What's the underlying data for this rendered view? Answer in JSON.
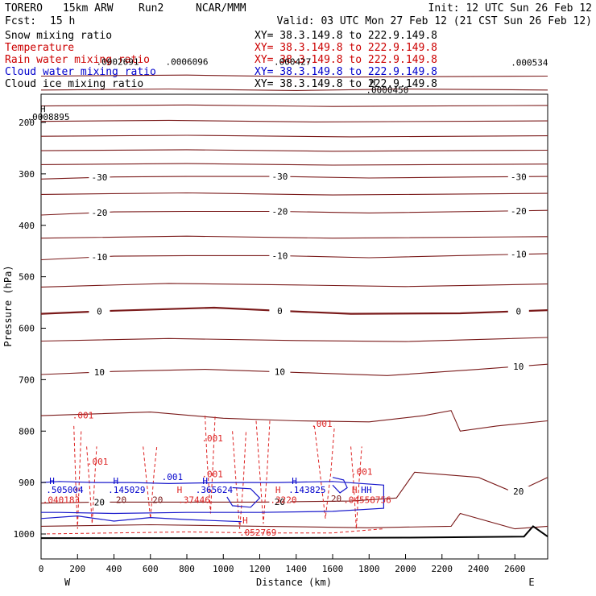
{
  "header": {
    "model": "TORERO",
    "resolution": "15km ARW",
    "run": "Run2",
    "center": "NCAR/MMM",
    "init": "Init: 12 UTC Sun 26 Feb 12",
    "fcst_label": "Fcst:",
    "fcst_value": "15 h",
    "valid": "Valid: 03 UTC Mon 27 Feb 12 (21 CST Sun 26 Feb 12)"
  },
  "fields": [
    {
      "label": "Snow mixing ratio",
      "xy": "XY=  38.3.149.8 to 222.9.149.8",
      "color": "#000000"
    },
    {
      "label": "Temperature",
      "xy": "XY=  38.3.149.8 to 222.9.149.8",
      "color": "#cc0000"
    },
    {
      "label": "Rain water mixing ratio",
      "xy": "XY=  38.3.149.8 to 222.9.149.8",
      "color": "#cc0000"
    },
    {
      "label": "Cloud water mixing ratio",
      "xy": "XY=  38.3.149.8 to 222.9.149.8",
      "color": "#0000cc"
    },
    {
      "label": "Cloud ice mixing ratio",
      "xy": "XY=  38.3.149.8 to 222.9.149.8",
      "color": "#000000"
    }
  ],
  "chart_data": {
    "type": "contour_cross_section",
    "xlabel": "Distance (km)",
    "ylabel": "Pressure (hPa)",
    "xlim": [
      0,
      2780
    ],
    "ylim": [
      1050,
      100
    ],
    "x_ticks": [
      0,
      200,
      400,
      600,
      800,
      1000,
      1200,
      1400,
      1600,
      1800,
      2000,
      2200,
      2400,
      2600
    ],
    "y_ticks": [
      200,
      300,
      400,
      500,
      600,
      700,
      800,
      900,
      1000
    ],
    "left_end": "W",
    "right_end": "E",
    "colors": {
      "temperature": "#7a1a1a",
      "rain": "#dd2222",
      "cloud_water": "#1a1acc",
      "terrain": "#000000"
    },
    "temperature_contours": [
      {
        "value": -65,
        "label": "",
        "points": [
          [
            0,
            110
          ],
          [
            800,
            108
          ],
          [
            1600,
            112
          ],
          [
            2780,
            110
          ]
        ]
      },
      {
        "value": -60,
        "label": "",
        "points": [
          [
            0,
            137
          ],
          [
            700,
            135
          ],
          [
            1400,
            138
          ],
          [
            2000,
            135
          ],
          [
            2780,
            137
          ]
        ]
      },
      {
        "value": -55,
        "label": "",
        "points": [
          [
            0,
            168
          ],
          [
            800,
            166
          ],
          [
            1600,
            169
          ],
          [
            2780,
            167
          ]
        ]
      },
      {
        "value": -50,
        "label": "",
        "points": [
          [
            0,
            198
          ],
          [
            700,
            196
          ],
          [
            1500,
            199
          ],
          [
            2780,
            197
          ]
        ]
      },
      {
        "value": -45,
        "label": "",
        "points": [
          [
            0,
            227
          ],
          [
            800,
            225
          ],
          [
            1700,
            228
          ],
          [
            2780,
            226
          ]
        ]
      },
      {
        "value": -40,
        "label": "",
        "points": [
          [
            0,
            255
          ],
          [
            800,
            253
          ],
          [
            1600,
            256
          ],
          [
            2780,
            254
          ]
        ]
      },
      {
        "value": -35,
        "label": "",
        "points": [
          [
            0,
            282
          ],
          [
            800,
            280
          ],
          [
            1600,
            283
          ],
          [
            2780,
            281
          ]
        ]
      },
      {
        "value": -30,
        "label": "-30",
        "points": [
          [
            0,
            310
          ],
          [
            400,
            306
          ],
          [
            800,
            305
          ],
          [
            1300,
            305
          ],
          [
            1800,
            308
          ],
          [
            2400,
            306
          ],
          [
            2780,
            305
          ]
        ]
      },
      {
        "value": -25,
        "label": "",
        "points": [
          [
            0,
            340
          ],
          [
            800,
            337
          ],
          [
            1600,
            341
          ],
          [
            2780,
            338
          ]
        ]
      },
      {
        "value": -20,
        "label": "-20",
        "points": [
          [
            0,
            380
          ],
          [
            400,
            374
          ],
          [
            800,
            373
          ],
          [
            1300,
            373
          ],
          [
            1800,
            376
          ],
          [
            2400,
            373
          ],
          [
            2780,
            371
          ]
        ]
      },
      {
        "value": -15,
        "label": "",
        "points": [
          [
            0,
            425
          ],
          [
            800,
            421
          ],
          [
            1600,
            425
          ],
          [
            2780,
            422
          ]
        ]
      },
      {
        "value": -10,
        "label": "-10",
        "points": [
          [
            0,
            467
          ],
          [
            400,
            460
          ],
          [
            800,
            459
          ],
          [
            1300,
            459
          ],
          [
            1800,
            463
          ],
          [
            2400,
            458
          ],
          [
            2780,
            455
          ]
        ]
      },
      {
        "value": -5,
        "label": "",
        "points": [
          [
            0,
            520
          ],
          [
            700,
            513
          ],
          [
            1400,
            516
          ],
          [
            2000,
            519
          ],
          [
            2780,
            514
          ]
        ]
      },
      {
        "value": 0,
        "label": "0",
        "points": [
          [
            0,
            572
          ],
          [
            400,
            566
          ],
          [
            950,
            560
          ],
          [
            1300,
            566
          ],
          [
            1700,
            572
          ],
          [
            2300,
            571
          ],
          [
            2780,
            565
          ]
        ]
      },
      {
        "value": 5,
        "label": "",
        "points": [
          [
            0,
            625
          ],
          [
            700,
            620
          ],
          [
            1400,
            624
          ],
          [
            2000,
            626
          ],
          [
            2780,
            618
          ]
        ]
      },
      {
        "value": 10,
        "label": "10",
        "points": [
          [
            0,
            690
          ],
          [
            400,
            684
          ],
          [
            900,
            680
          ],
          [
            1400,
            686
          ],
          [
            1900,
            692
          ],
          [
            2400,
            680
          ],
          [
            2780,
            670
          ]
        ]
      },
      {
        "value": 15,
        "label": "",
        "points": [
          [
            0,
            770
          ],
          [
            600,
            763
          ],
          [
            1000,
            775
          ],
          [
            1400,
            780
          ],
          [
            1800,
            782
          ],
          [
            2100,
            770
          ],
          [
            2250,
            760
          ],
          [
            2300,
            800
          ],
          [
            2500,
            790
          ],
          [
            2780,
            780
          ]
        ]
      },
      {
        "value": 20,
        "label": "20",
        "points": [
          [
            0,
            940
          ],
          [
            300,
            938
          ],
          [
            700,
            938
          ],
          [
            1200,
            938
          ],
          [
            1700,
            936
          ],
          [
            1950,
            930
          ],
          [
            2050,
            880
          ],
          [
            2400,
            890
          ],
          [
            2600,
            920
          ],
          [
            2780,
            890
          ]
        ]
      },
      {
        "value": 25,
        "label": "",
        "points": [
          [
            0,
            985
          ],
          [
            600,
            982
          ],
          [
            1200,
            985
          ],
          [
            1800,
            988
          ],
          [
            2250,
            985
          ],
          [
            2300,
            960
          ],
          [
            2600,
            990
          ],
          [
            2780,
            985
          ]
        ]
      }
    ],
    "rain_label": ".001",
    "rain_contours": [
      [
        [
          180,
          790
        ],
        [
          190,
          900
        ],
        [
          200,
          990
        ],
        [
          210,
          890
        ],
        [
          220,
          800
        ]
      ],
      [
        [
          250,
          830
        ],
        [
          265,
          900
        ],
        [
          280,
          980
        ],
        [
          295,
          890
        ],
        [
          305,
          830
        ]
      ],
      [
        [
          560,
          830
        ],
        [
          580,
          900
        ],
        [
          600,
          970
        ],
        [
          620,
          880
        ],
        [
          635,
          830
        ]
      ],
      [
        [
          900,
          770
        ],
        [
          910,
          850
        ],
        [
          930,
          960
        ],
        [
          945,
          850
        ],
        [
          955,
          770
        ]
      ],
      [
        [
          1050,
          800
        ],
        [
          1070,
          900
        ],
        [
          1090,
          990
        ],
        [
          1110,
          900
        ],
        [
          1125,
          800
        ]
      ],
      [
        [
          1180,
          780
        ],
        [
          1200,
          880
        ],
        [
          1220,
          980
        ],
        [
          1240,
          880
        ],
        [
          1255,
          780
        ]
      ],
      [
        [
          1500,
          790
        ],
        [
          1530,
          880
        ],
        [
          1560,
          970
        ],
        [
          1590,
          880
        ],
        [
          1610,
          790
        ]
      ],
      [
        [
          1700,
          830
        ],
        [
          1715,
          900
        ],
        [
          1730,
          990
        ],
        [
          1745,
          900
        ],
        [
          1760,
          830
        ]
      ],
      [
        [
          0,
          1000
        ],
        [
          400,
          998
        ],
        [
          800,
          996
        ],
        [
          1200,
          998
        ],
        [
          1600,
          998
        ],
        [
          1880,
          990
        ]
      ]
    ],
    "rain_labels": [
      {
        "x": 230,
        "p": 775
      },
      {
        "x": 310,
        "p": 865
      },
      {
        "x": 940,
        "p": 820
      },
      {
        "x": 940,
        "p": 890
      },
      {
        "x": 1540,
        "p": 792
      },
      {
        "x": 1760,
        "p": 885
      }
    ],
    "cloud_water_contours": [
      [
        [
          0,
          900
        ],
        [
          100,
          898
        ],
        [
          300,
          900
        ],
        [
          500,
          900
        ],
        [
          700,
          902
        ],
        [
          1000,
          900
        ],
        [
          1300,
          900
        ],
        [
          1600,
          898
        ],
        [
          1880,
          905
        ],
        [
          1880,
          950
        ],
        [
          1600,
          956
        ],
        [
          1200,
          958
        ],
        [
          800,
          958
        ],
        [
          400,
          960
        ],
        [
          100,
          958
        ],
        [
          0,
          958
        ]
      ],
      [
        [
          0,
          970
        ],
        [
          200,
          965
        ],
        [
          400,
          975
        ],
        [
          600,
          968
        ],
        [
          800,
          972
        ],
        [
          1100,
          976
        ]
      ],
      [
        [
          1050,
          910
        ],
        [
          1150,
          912
        ],
        [
          1200,
          930
        ],
        [
          1150,
          948
        ],
        [
          1050,
          945
        ],
        [
          1020,
          928
        ]
      ],
      [
        [
          1600,
          890
        ],
        [
          1660,
          895
        ],
        [
          1680,
          910
        ],
        [
          1640,
          920
        ],
        [
          1600,
          905
        ]
      ]
    ],
    "field_values": [
      {
        "text": "H",
        "x": 10,
        "p": 180,
        "color": "#000000"
      },
      {
        "text": ".0008895",
        "x": 40,
        "p": 195,
        "color": "#000000"
      },
      {
        "text": ".0002691",
        "x": 420,
        "p": 88,
        "color": "#000000"
      },
      {
        "text": ".0006096",
        "x": 800,
        "p": 88,
        "color": "#000000"
      },
      {
        "text": ".000427",
        "x": 1380,
        "p": 88,
        "color": "#000000"
      },
      {
        "text": "H",
        "x": 1820,
        "p": 128,
        "color": "#000000"
      },
      {
        "text": ".0000450",
        "x": 1900,
        "p": 143,
        "color": "#000000"
      },
      {
        "text": ".000534",
        "x": 2680,
        "p": 90,
        "color": "#000000"
      },
      {
        "text": "H",
        "x": 60,
        "p": 903,
        "color": "#0000cc"
      },
      {
        "text": ".505004",
        "x": 130,
        "p": 920,
        "color": "#0000cc"
      },
      {
        "text": "H",
        "x": 410,
        "p": 903,
        "color": "#0000cc"
      },
      {
        "text": ".145029",
        "x": 470,
        "p": 920,
        "color": "#0000cc"
      },
      {
        "text": ".001",
        "x": 720,
        "p": 895,
        "color": "#0000cc"
      },
      {
        "text": "H",
        "x": 900,
        "p": 903,
        "color": "#0000cc"
      },
      {
        "text": ".365624",
        "x": 950,
        "p": 920,
        "color": "#0000cc"
      },
      {
        "text": "H",
        "x": 1390,
        "p": 903,
        "color": "#0000cc"
      },
      {
        "text": ".143825",
        "x": 1460,
        "p": 920,
        "color": "#0000cc"
      },
      {
        "text": "H",
        "x": 1770,
        "p": 920,
        "color": "#0000cc"
      },
      {
        "text": "H",
        "x": 1800,
        "p": 920,
        "color": "#0000cc"
      },
      {
        "text": ".040183",
        "x": 110,
        "p": 940,
        "color": "#dd2222"
      },
      {
        "text": "H",
        "x": 760,
        "p": 920,
        "color": "#dd2222"
      },
      {
        "text": ".37446",
        "x": 840,
        "p": 940,
        "color": "#dd2222"
      },
      {
        "text": "H",
        "x": 1300,
        "p": 920,
        "color": "#dd2222"
      },
      {
        "text": ".3220",
        "x": 1330,
        "p": 940,
        "color": "#dd2222"
      },
      {
        "text": "H",
        "x": 1720,
        "p": 920,
        "color": "#dd2222"
      },
      {
        "text": ".04558756",
        "x": 1790,
        "p": 940,
        "color": "#dd2222"
      },
      {
        "text": "H",
        "x": 1120,
        "p": 980,
        "color": "#dd2222"
      },
      {
        "text": ".052769",
        "x": 1190,
        "p": 1003,
        "color": "#dd2222"
      },
      {
        "text": "20",
        "x": 440,
        "p": 940,
        "color": "#7a1a1a"
      },
      {
        "text": "20",
        "x": 640,
        "p": 940,
        "color": "#7a1a1a"
      },
      {
        "text": "20",
        "x": 1620,
        "p": 937,
        "color": "#7a1a1a"
      }
    ],
    "terrain": [
      [
        0,
        1008
      ],
      [
        1000,
        1008
      ],
      [
        2000,
        1007
      ],
      [
        2650,
        1005
      ],
      [
        2700,
        985
      ],
      [
        2780,
        1005
      ]
    ]
  }
}
